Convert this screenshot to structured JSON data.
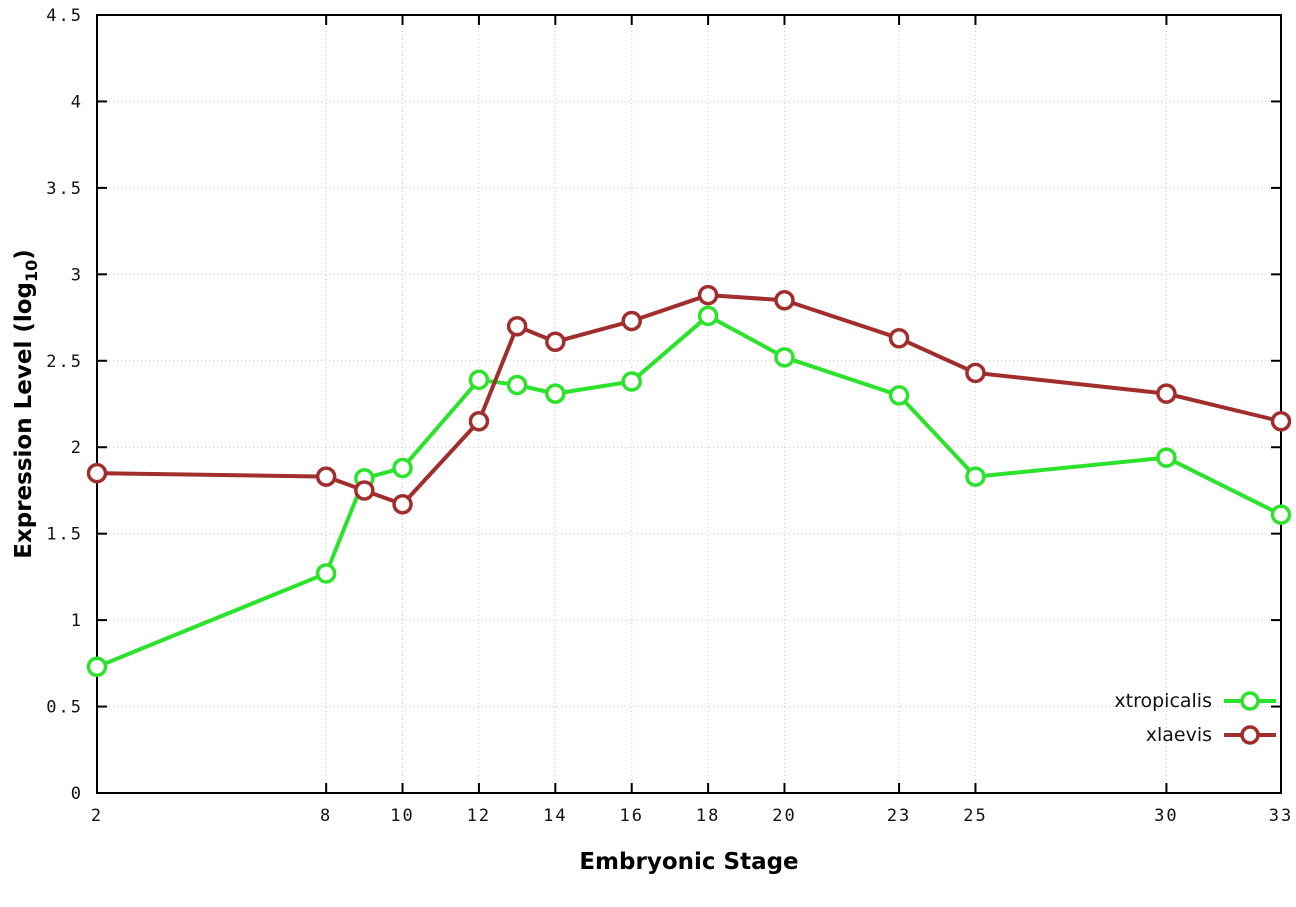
{
  "chart_data": {
    "type": "line",
    "title": "",
    "xlabel": "Embryonic Stage",
    "ylabel": "Expression Level (log10)",
    "xlim": [
      2,
      33
    ],
    "ylim": [
      0,
      4.5
    ],
    "xticks": [
      2,
      8,
      10,
      12,
      14,
      16,
      18,
      20,
      23,
      25,
      30,
      33
    ],
    "xtick_labels": [
      "2",
      "8",
      "10",
      "12",
      "14",
      "16",
      "18",
      "20",
      "23",
      "25",
      "30",
      "33"
    ],
    "yticks": [
      0,
      0.5,
      1,
      1.5,
      2,
      2.5,
      3,
      3.5,
      4,
      4.5
    ],
    "ytick_labels": [
      "0",
      "0.5",
      "1",
      "1.5",
      "2",
      "2.5",
      "3",
      "3.5",
      "4",
      "4.5"
    ],
    "grid": true,
    "legend_position": "bottom-right",
    "marker": "open-circle",
    "x": [
      2,
      8,
      9,
      10,
      12,
      13,
      14,
      16,
      18,
      20,
      23,
      25,
      30,
      33
    ],
    "series": [
      {
        "name": "xtropicalis",
        "color": "#2ce32c",
        "values": [
          0.73,
          1.27,
          1.82,
          1.88,
          2.39,
          2.36,
          2.31,
          2.38,
          2.76,
          2.52,
          2.3,
          1.83,
          1.94,
          1.61
        ]
      },
      {
        "name": "xlaevis",
        "color": "#a12d2d",
        "values": [
          1.85,
          1.83,
          1.75,
          1.67,
          2.15,
          2.7,
          2.61,
          2.73,
          2.88,
          2.85,
          2.63,
          2.43,
          2.31,
          2.15
        ]
      }
    ]
  },
  "labels": {
    "ylabel_prefix": "Expression Level (log",
    "ylabel_sub": "10",
    "ylabel_suffix": ")",
    "xlabel": "Embryonic Stage"
  }
}
